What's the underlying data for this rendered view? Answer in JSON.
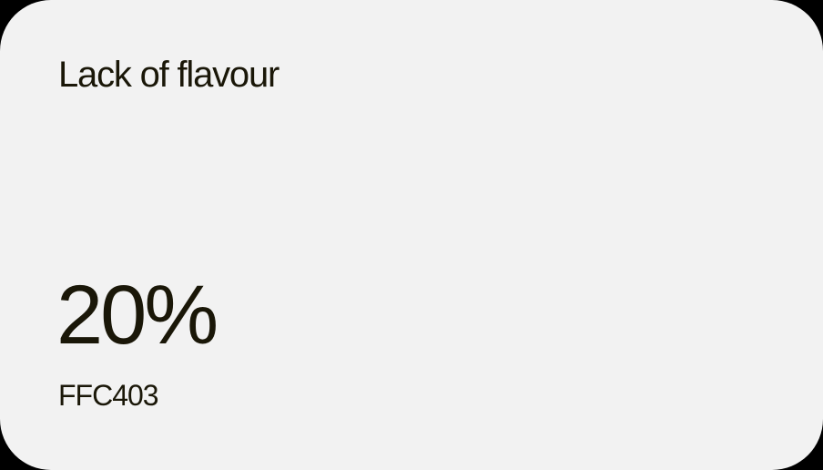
{
  "card": {
    "title": "Lack of flavour",
    "value": "20%",
    "code": "FFC403"
  },
  "colors": {
    "card_background": "#f2f2f2",
    "text": "#1a1708",
    "page_background": "#000000"
  }
}
